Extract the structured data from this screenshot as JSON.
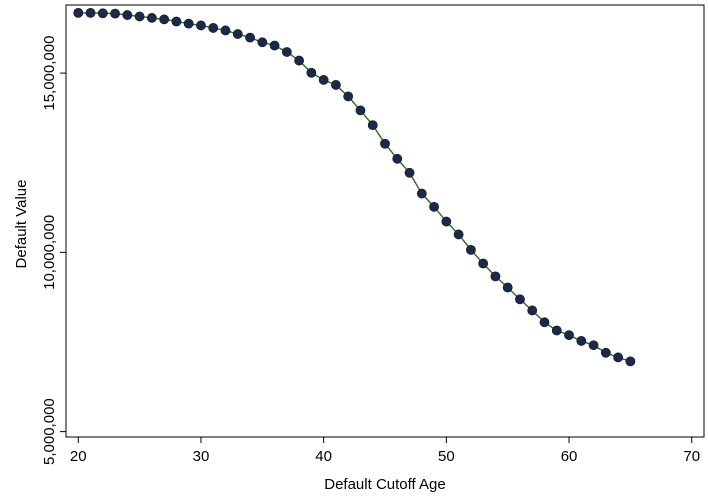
{
  "chart_data": {
    "type": "line",
    "xlabel": "Default Cutoff Age",
    "ylabel": "Default Value",
    "xlim": [
      19,
      71
    ],
    "ylim": [
      4850000,
      16900000
    ],
    "x_ticks": [
      20,
      30,
      40,
      50,
      60,
      70
    ],
    "x_tick_labels": [
      "20",
      "30",
      "40",
      "50",
      "60",
      "70"
    ],
    "y_ticks": [
      5000000,
      10000000,
      15000000
    ],
    "y_tick_labels": [
      "5,000,000",
      "10,000,000",
      "15,000,000"
    ],
    "grid": false,
    "legend": false,
    "line_color": "#2e6b1f",
    "marker_color": "#1b2a49",
    "x": [
      20,
      21,
      22,
      23,
      24,
      25,
      26,
      27,
      28,
      29,
      30,
      31,
      32,
      33,
      34,
      35,
      36,
      37,
      38,
      39,
      40,
      41,
      42,
      43,
      44,
      45,
      46,
      47,
      48,
      49,
      50,
      51,
      52,
      53,
      54,
      55,
      56,
      57,
      58,
      59,
      60,
      61,
      62,
      63,
      64,
      65
    ],
    "series": [
      {
        "values": [
          16680000,
          16680000,
          16670000,
          16660000,
          16620000,
          16580000,
          16540000,
          16500000,
          16440000,
          16380000,
          16330000,
          16260000,
          16190000,
          16090000,
          15990000,
          15860000,
          15770000,
          15590000,
          15350000,
          15010000,
          14810000,
          14670000,
          14350000,
          13960000,
          13550000,
          13030000,
          12610000,
          12220000,
          11640000,
          11270000,
          10860000,
          10500000,
          10070000,
          9690000,
          9330000,
          9020000,
          8690000,
          8380000,
          8050000,
          7820000,
          7690000,
          7530000,
          7410000,
          7200000,
          7070000,
          6960000
        ]
      }
    ]
  }
}
